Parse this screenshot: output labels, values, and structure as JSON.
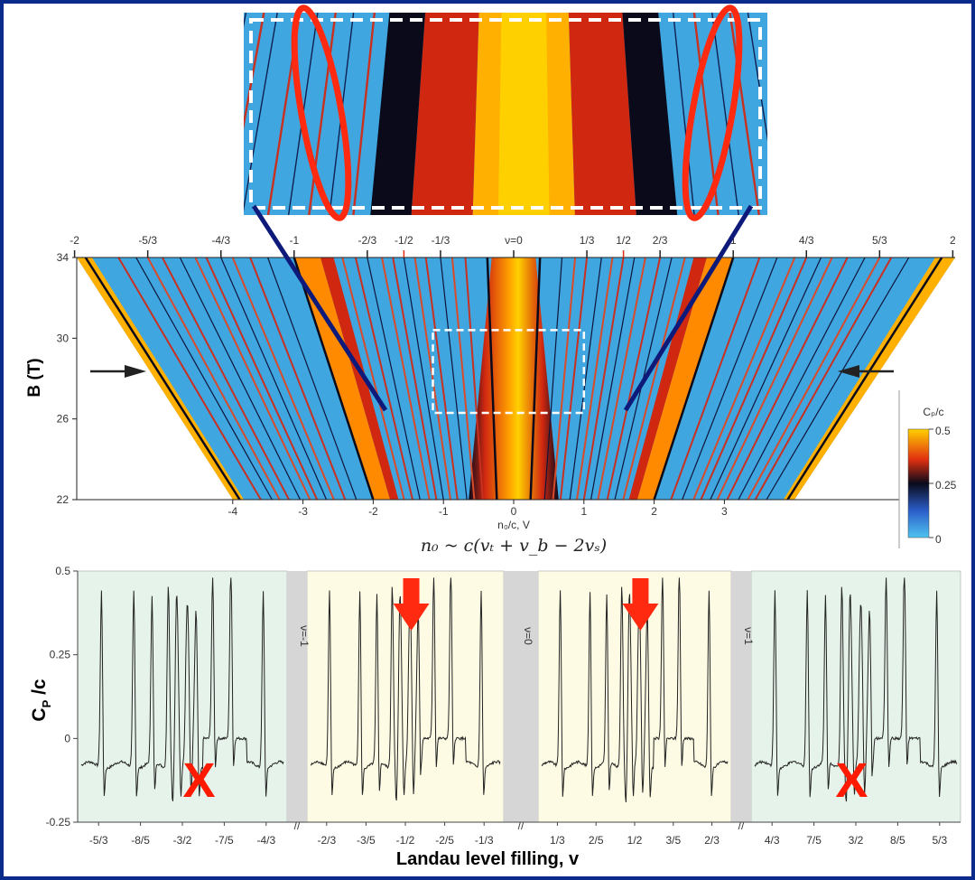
{
  "chart_data": [
    {
      "type": "heatmap",
      "title": "",
      "xlabel": "n₀/c, V",
      "x_formula": "n₀ ~ c(vₜ + v_b − 2vₛ)",
      "ylabel": "B (T)",
      "xlim": [
        -4,
        4
      ],
      "ylim": [
        22,
        34
      ],
      "x_ticks": [
        "-4",
        "-3",
        "-2",
        "-1",
        "0",
        "1",
        "2",
        "3"
      ],
      "y_ticks": [
        "22",
        "26",
        "30",
        "34"
      ],
      "top_ticks": [
        "-2",
        "-5/3",
        "-4/3",
        "-1",
        "-2/3",
        "-1/2",
        "-1/3",
        "ν=0",
        "1/3",
        "1/2",
        "2/3",
        "1",
        "4/3",
        "5/3",
        "2"
      ],
      "top_ticks_nu": [
        -2,
        -1.6667,
        -1.3333,
        -1,
        -0.6667,
        -0.5,
        -0.3333,
        0,
        0.3333,
        0.5,
        0.6667,
        1,
        1.3333,
        1.6667,
        2
      ],
      "colorbar": {
        "label": "Cₚ/c",
        "ticks": [
          "0.5",
          "0.25",
          "0"
        ],
        "range": [
          0,
          0.5
        ]
      },
      "zoom_box": {
        "x": [
          -1.15,
          1.0
        ],
        "y": [
          26.3,
          30.4
        ]
      },
      "colors": {
        "low": "#4fc3f0",
        "mid": "#0a0a1a",
        "high_red": "#e03010",
        "high": "#ffd000"
      }
    },
    {
      "type": "line",
      "title": "",
      "xlabel": "Landau level filling, v",
      "ylabel": "C",
      "ylabel_sub": "P",
      "ylabel_suffix": " /c",
      "ylim": [
        -0.25,
        0.5
      ],
      "y_ticks": [
        "0.5",
        "0.25",
        "0",
        "-0.25"
      ],
      "panels": [
        {
          "x_ticks": [
            "-5/3",
            "-8/5",
            "-3/2",
            "-7/5",
            "-4/3"
          ],
          "color": "#e6f3ea",
          "marker": "X"
        },
        {
          "x_ticks": [
            "-2/3",
            "-3/5",
            "-1/2",
            "-2/5",
            "-1/3"
          ],
          "color": "#fdfbe4",
          "marker": "arrow"
        },
        {
          "x_ticks": [
            "1/3",
            "2/5",
            "1/2",
            "3/5",
            "2/3"
          ],
          "color": "#fdfbe4",
          "marker": "arrow"
        },
        {
          "x_ticks": [
            "4/3",
            "7/5",
            "3/2",
            "8/5",
            "5/3"
          ],
          "color": "#e6f3ea",
          "marker": "X"
        }
      ],
      "gap_labels": [
        "ν=-1",
        "ν=0",
        "ν=1"
      ],
      "break_mark": "//",
      "peaks_left_edge": [
        [
          0.1,
          0.45
        ],
        [
          0.26,
          0.45
        ],
        [
          0.35,
          0.42
        ],
        [
          0.43,
          0.43
        ],
        [
          0.47,
          0.35
        ],
        [
          0.52,
          0.24
        ],
        [
          0.56,
          0.1
        ]
      ],
      "peaks_right_edge": [
        [
          0.44,
          0.1
        ],
        [
          0.48,
          0.24
        ],
        [
          0.53,
          0.35
        ],
        [
          0.57,
          0.43
        ],
        [
          0.65,
          0.42
        ],
        [
          0.74,
          0.45
        ],
        [
          0.9,
          0.45
        ]
      ],
      "series": [
        {
          "values": [
            0.45,
            0.45,
            0.42,
            0.43,
            0.35,
            0.24,
            0.1,
            0.1,
            0.24,
            0.35,
            0.43,
            0.42,
            0.45,
            0.45
          ]
        }
      ]
    }
  ],
  "annotations": {
    "x_mark": "X"
  }
}
